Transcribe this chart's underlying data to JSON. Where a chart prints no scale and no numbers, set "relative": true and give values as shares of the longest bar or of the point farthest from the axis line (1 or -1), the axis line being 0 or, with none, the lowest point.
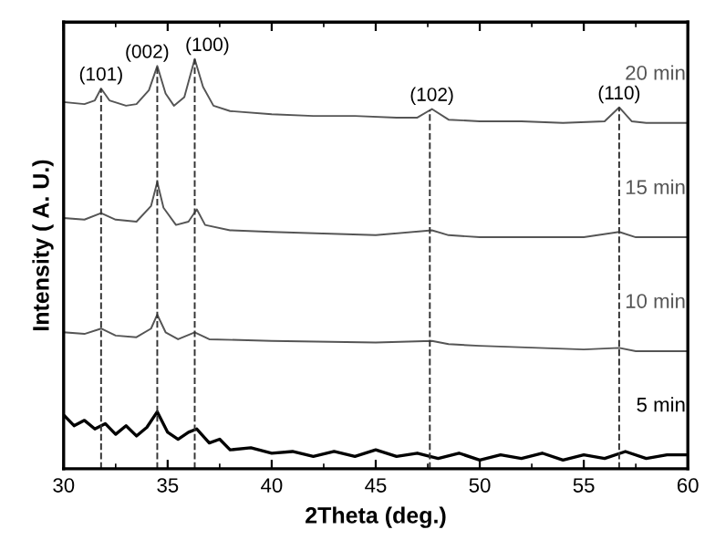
{
  "chart_data": {
    "type": "line",
    "relative": true,
    "xlabel": "2Theta (deg.)",
    "ylabel": "Intensity ( A. U.)",
    "xlim": [
      30,
      60
    ],
    "xticks": [
      30,
      35,
      40,
      45,
      50,
      55,
      60
    ],
    "tick_labels": "x",
    "grid": false,
    "legend": false,
    "marker": "none",
    "line_style": "solid",
    "series": [
      {
        "name": "5 min",
        "color": "#000000",
        "x": [
          30,
          30.5,
          31,
          31.5,
          32,
          32.5,
          33,
          33.5,
          34,
          34.5,
          35,
          35.5,
          36,
          36.4,
          37,
          37.5,
          38,
          39,
          40,
          41,
          42,
          43,
          44,
          45,
          46,
          47,
          48,
          49,
          50,
          51,
          52,
          53,
          54,
          55,
          56,
          57,
          58,
          59,
          60
        ],
        "values": [
          0.131,
          0.105,
          0.118,
          0.097,
          0.11,
          0.084,
          0.105,
          0.08,
          0.101,
          0.139,
          0.089,
          0.072,
          0.089,
          0.097,
          0.063,
          0.072,
          0.046,
          0.051,
          0.038,
          0.042,
          0.03,
          0.042,
          0.03,
          0.046,
          0.03,
          0.038,
          0.025,
          0.038,
          0.021,
          0.034,
          0.025,
          0.038,
          0.021,
          0.034,
          0.025,
          0.042,
          0.025,
          0.034,
          0.034
        ]
      },
      {
        "name": "10 min",
        "color": "#555555",
        "x": [
          30,
          31,
          31.8,
          32.5,
          33.5,
          34.2,
          34.5,
          34.9,
          35.5,
          36.3,
          37,
          40,
          45,
          47.7,
          48.5,
          50,
          55,
          56.7,
          57.5,
          60
        ],
        "values": [
          0.333,
          0.329,
          0.342,
          0.325,
          0.321,
          0.342,
          0.376,
          0.333,
          0.316,
          0.333,
          0.316,
          0.312,
          0.308,
          0.312,
          0.304,
          0.3,
          0.291,
          0.295,
          0.287,
          0.287
        ]
      },
      {
        "name": "15 min",
        "color": "#555555",
        "x": [
          30,
          31,
          31.8,
          32.5,
          33.5,
          34.2,
          34.5,
          34.8,
          35.4,
          36.0,
          36.4,
          36.8,
          38,
          40,
          45,
          47.7,
          48.5,
          50,
          55,
          56.7,
          57.5,
          60
        ],
        "values": [
          0.612,
          0.608,
          0.624,
          0.608,
          0.603,
          0.641,
          0.7,
          0.637,
          0.595,
          0.603,
          0.633,
          0.595,
          0.582,
          0.578,
          0.57,
          0.582,
          0.57,
          0.565,
          0.565,
          0.578,
          0.565,
          0.565
        ]
      },
      {
        "name": "20 min",
        "color": "#555555",
        "x": [
          30,
          31,
          31.5,
          31.8,
          32.2,
          33,
          33.5,
          34.1,
          34.5,
          34.9,
          35.3,
          35.8,
          36.3,
          36.7,
          37.2,
          38,
          40,
          42,
          44,
          46,
          47,
          47.7,
          48.5,
          50,
          52,
          54,
          56,
          56.7,
          57.3,
          58,
          60
        ],
        "values": [
          0.895,
          0.89,
          0.899,
          0.928,
          0.899,
          0.886,
          0.89,
          0.924,
          0.983,
          0.916,
          0.886,
          0.907,
          1.0,
          0.932,
          0.886,
          0.873,
          0.865,
          0.861,
          0.861,
          0.857,
          0.857,
          0.878,
          0.852,
          0.848,
          0.848,
          0.844,
          0.848,
          0.882,
          0.848,
          0.844,
          0.844
        ]
      }
    ],
    "ref_lines": [
      {
        "axis": "x",
        "value": 31.8,
        "color": "#333333",
        "line_style": "dashed"
      },
      {
        "axis": "x",
        "value": 34.5,
        "color": "#333333",
        "line_style": "dashed"
      },
      {
        "axis": "x",
        "value": 36.3,
        "color": "#333333",
        "line_style": "dashed"
      },
      {
        "axis": "x",
        "value": 47.6,
        "color": "#333333",
        "line_style": "dashed"
      },
      {
        "axis": "x",
        "value": 56.7,
        "color": "#333333",
        "line_style": "dashed"
      }
    ],
    "annotations": [
      {
        "text": "(101)",
        "x": 31.8,
        "y": 0.928
      },
      {
        "text": "(002)",
        "x": 34.5,
        "y": 0.983
      },
      {
        "text": "(100)",
        "x": 36.3,
        "y": 1.0
      },
      {
        "text": "(102)",
        "x": 47.7,
        "y": 0.878
      },
      {
        "text": "(110)",
        "x": 56.7,
        "y": 0.882
      }
    ]
  }
}
